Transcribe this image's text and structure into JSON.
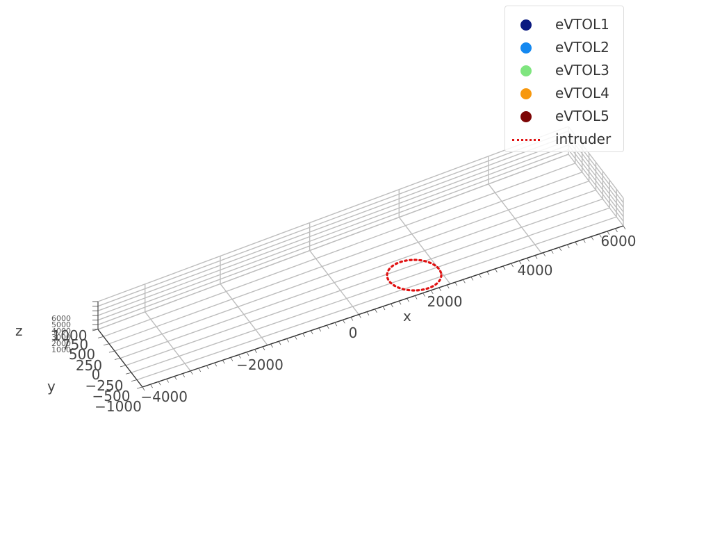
{
  "chart_data": {
    "type": "scatter",
    "projection": "3d",
    "xlabel": "x",
    "ylabel": "y",
    "zlabel": "z",
    "x_ticks": [
      "−2000",
      "0",
      "2000",
      "4000",
      "6000"
    ],
    "y_ticks": [
      "−1000",
      "−500",
      "−250",
      "0",
      "250",
      "500",
      "750",
      "1000"
    ],
    "z_ticks": [
      "1000",
      "2000",
      "3000",
      "4000",
      "5000",
      "6000"
    ],
    "x_corner_tick": "−4000",
    "grid": true,
    "legend_position": "top-right",
    "series": [
      {
        "name": "eVTOL1",
        "color": "#0b1a80",
        "marker": "dot",
        "points": []
      },
      {
        "name": "eVTOL2",
        "color": "#1488f0",
        "marker": "dot",
        "points": []
      },
      {
        "name": "eVTOL3",
        "color": "#7fe57f",
        "marker": "dot",
        "points": []
      },
      {
        "name": "eVTOL4",
        "color": "#f7980e",
        "marker": "dot",
        "points": []
      },
      {
        "name": "eVTOL5",
        "color": "#7d0606",
        "marker": "dot",
        "points": []
      },
      {
        "name": "intruder",
        "color": "#e01010",
        "marker": "dotted-line",
        "center": [
          1500,
          0,
          0
        ],
        "radius": 500
      }
    ]
  }
}
